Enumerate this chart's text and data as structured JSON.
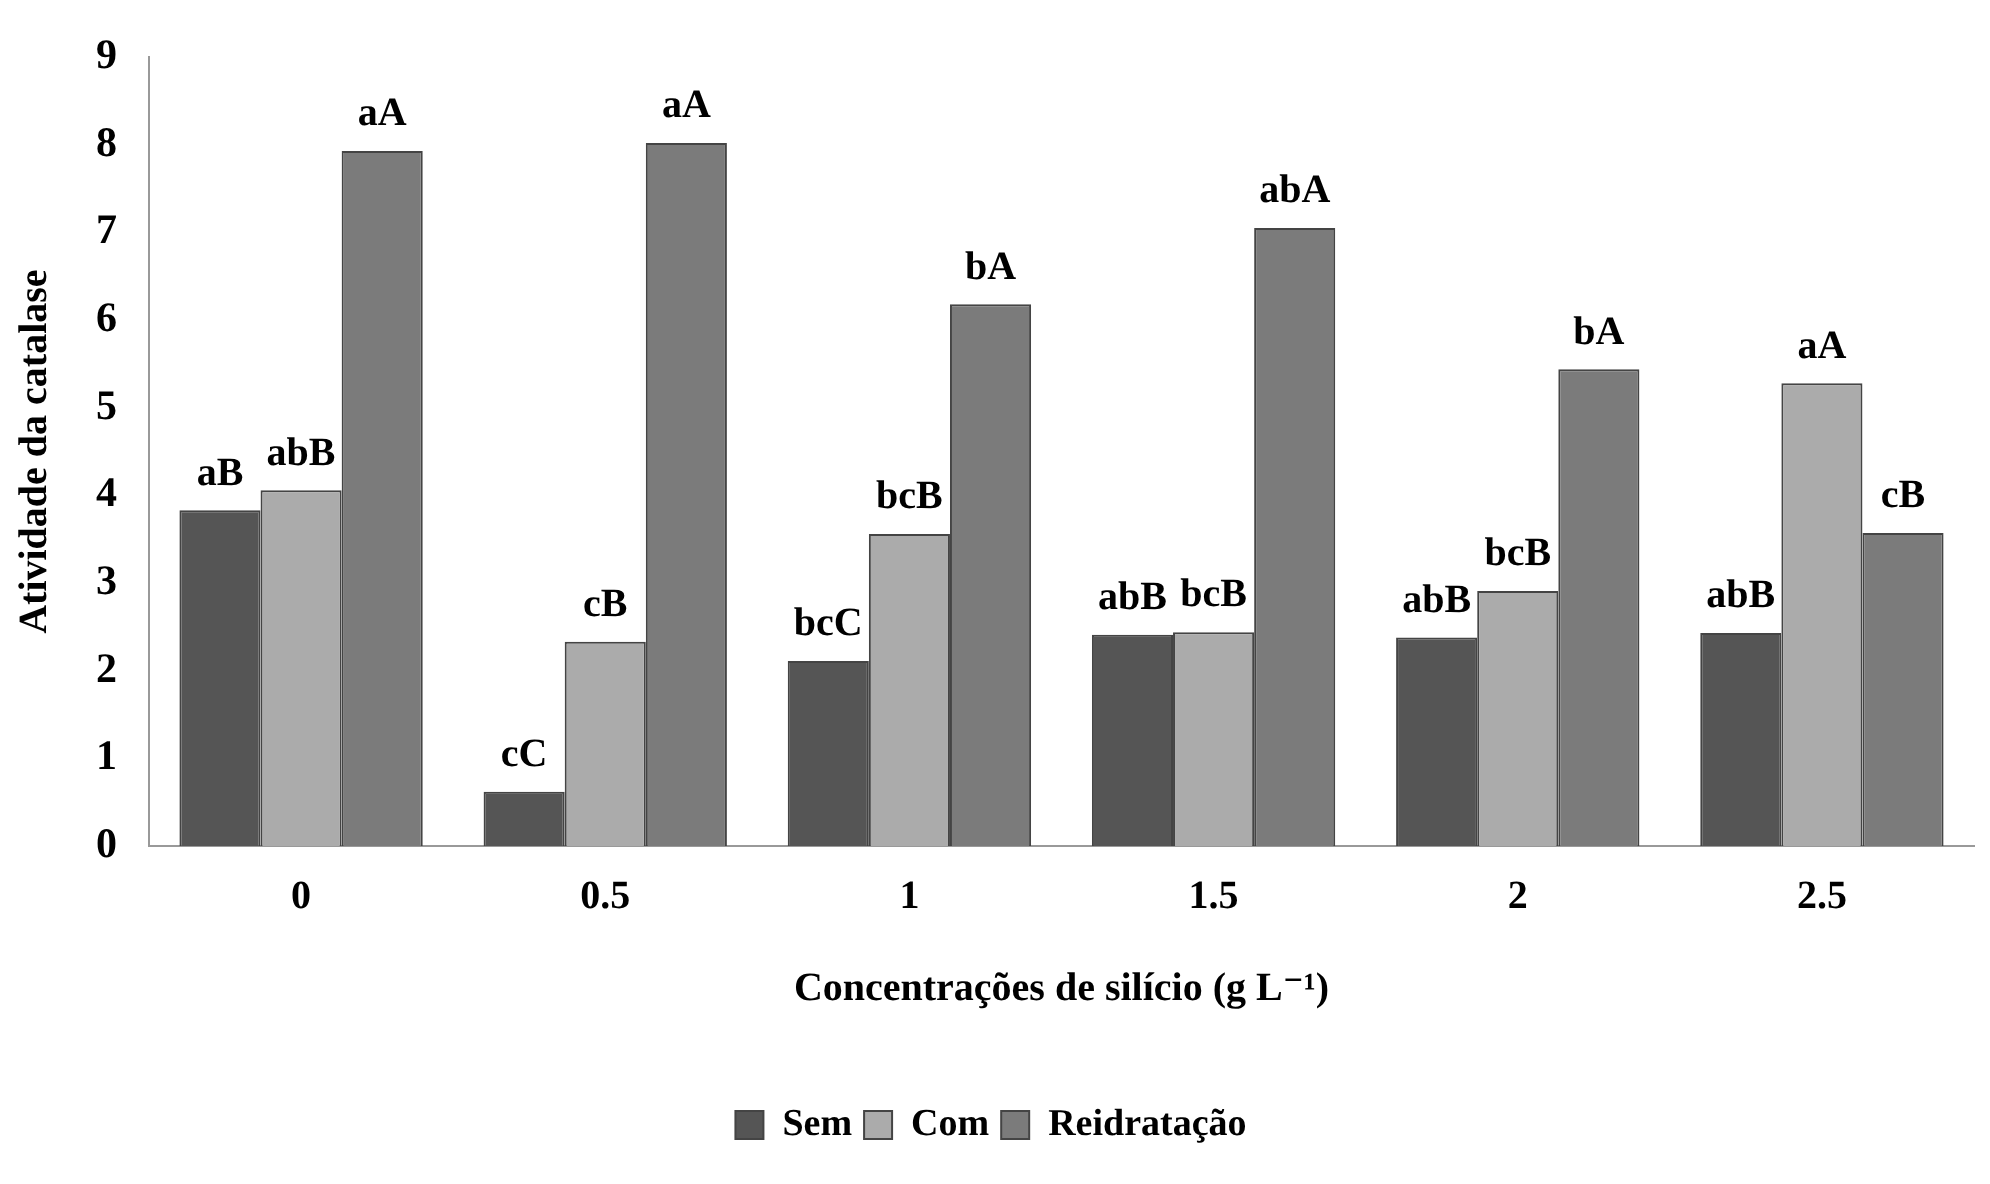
{
  "chart_data": {
    "type": "bar",
    "xlabel": "Concentrações de silício (g L⁻¹)",
    "ylabel": "Atividade da catalase",
    "categories": [
      "0",
      "0.5",
      "1",
      "1.5",
      "2",
      "2.5"
    ],
    "series": [
      {
        "name": "Sem",
        "color": "#555555",
        "values": [
          3.83,
          0.62,
          2.11,
          2.41,
          2.38,
          2.43
        ],
        "value_labels": [
          "aB",
          "cC",
          "bcC",
          "abB",
          "abB",
          "abB"
        ]
      },
      {
        "name": "Com",
        "color": "#ababab",
        "values": [
          4.06,
          2.33,
          3.56,
          2.44,
          2.91,
          5.28
        ],
        "value_labels": [
          "abB",
          "cB",
          "bcB",
          "bcB",
          "bcB",
          "aA"
        ]
      },
      {
        "name": "Reidratação",
        "color": "#7b7b7b",
        "values": [
          7.93,
          8.02,
          6.18,
          7.05,
          5.44,
          3.57
        ],
        "value_labels": [
          "aA",
          "aA",
          "bA",
          "abA",
          "bA",
          "cB"
        ]
      }
    ],
    "ylim": [
      0,
      9
    ],
    "yticks": [
      0,
      1,
      2,
      3,
      4,
      5,
      6,
      7,
      8,
      9
    ],
    "grid": false,
    "legend": "bottom"
  }
}
